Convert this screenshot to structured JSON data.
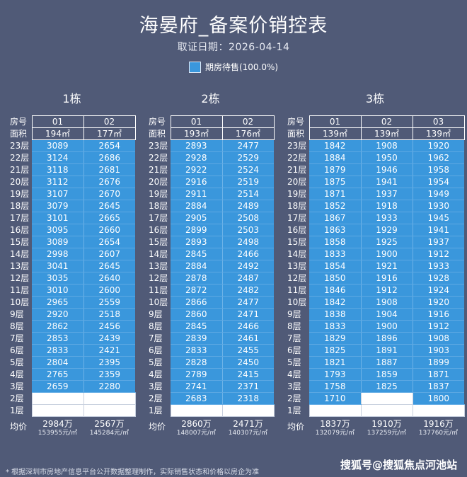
{
  "title": "海晏府_备案价销控表",
  "date_line": "取证日期：2026-04-14",
  "legend": {
    "label": "期房待售(100.0%)",
    "color": "#3a97dc"
  },
  "row_labels": {
    "room": "房号",
    "area": "面积",
    "avg": "均价"
  },
  "floor_labels": [
    "23层",
    "22层",
    "21层",
    "20层",
    "19层",
    "18层",
    "17层",
    "16层",
    "15层",
    "14层",
    "13层",
    "12层",
    "11层",
    "10层",
    "9层",
    "8层",
    "7层",
    "6层",
    "5层",
    "4层",
    "3层",
    "2层",
    "1层"
  ],
  "buildings": [
    {
      "name": "1栋",
      "units": [
        {
          "room": "01",
          "area": "194㎡",
          "prices": [
            "3089",
            "3124",
            "3118",
            "3112",
            "3107",
            "3079",
            "3101",
            "3095",
            "3089",
            "2998",
            "3041",
            "3035",
            "3010",
            "2965",
            "2920",
            "2862",
            "2853",
            "2833",
            "2804",
            "2765",
            "2659",
            "",
            ""
          ],
          "avg_total": "2984万",
          "avg_unit": "153955元/㎡"
        },
        {
          "room": "02",
          "area": "177㎡",
          "prices": [
            "2654",
            "2686",
            "2681",
            "2676",
            "2670",
            "2645",
            "2665",
            "2660",
            "2654",
            "2607",
            "2645",
            "2640",
            "2600",
            "2559",
            "2518",
            "2456",
            "2439",
            "2421",
            "2395",
            "2359",
            "2280",
            "",
            ""
          ],
          "avg_total": "2567万",
          "avg_unit": "145284元/㎡"
        }
      ]
    },
    {
      "name": "2栋",
      "units": [
        {
          "room": "01",
          "area": "193㎡",
          "prices": [
            "2893",
            "2928",
            "2922",
            "2916",
            "2911",
            "2884",
            "2905",
            "2899",
            "2893",
            "2845",
            "2884",
            "2878",
            "2872",
            "2866",
            "2860",
            "2845",
            "2839",
            "2833",
            "2828",
            "2789",
            "2741",
            "2683",
            ""
          ],
          "avg_total": "2860万",
          "avg_unit": "148007元/㎡"
        },
        {
          "room": "02",
          "area": "176㎡",
          "prices": [
            "2477",
            "2529",
            "2524",
            "2519",
            "2514",
            "2489",
            "2508",
            "2503",
            "2498",
            "2466",
            "2492",
            "2487",
            "2482",
            "2477",
            "2471",
            "2466",
            "2461",
            "2455",
            "2450",
            "2415",
            "2371",
            "2318",
            ""
          ],
          "avg_total": "2471万",
          "avg_unit": "140307元/㎡"
        }
      ]
    },
    {
      "name": "3栋",
      "units": [
        {
          "room": "01",
          "area": "139㎡",
          "prices": [
            "1842",
            "1884",
            "1879",
            "1875",
            "1871",
            "1852",
            "1867",
            "1863",
            "1858",
            "1833",
            "1854",
            "1850",
            "1846",
            "1842",
            "1838",
            "1833",
            "1829",
            "1825",
            "1821",
            "1793",
            "1758",
            "1710",
            ""
          ],
          "avg_total": "1837万",
          "avg_unit": "132079元/㎡"
        },
        {
          "room": "02",
          "area": "139㎡",
          "prices": [
            "1908",
            "1950",
            "1946",
            "1941",
            "1937",
            "1918",
            "1933",
            "1929",
            "1925",
            "1900",
            "1921",
            "1916",
            "1912",
            "1908",
            "1904",
            "1900",
            "1896",
            "1891",
            "1887",
            "1859",
            "1825",
            "",
            ""
          ],
          "avg_total": "1910万",
          "avg_unit": "137259元/㎡"
        },
        {
          "room": "03",
          "area": "139㎡",
          "prices": [
            "1920",
            "1962",
            "1958",
            "1954",
            "1949",
            "1930",
            "1945",
            "1941",
            "1937",
            "1912",
            "1933",
            "1928",
            "1924",
            "1920",
            "1916",
            "1912",
            "1908",
            "1903",
            "1899",
            "1871",
            "1837",
            "1800",
            ""
          ],
          "avg_total": "1916万",
          "avg_unit": "137760元/㎡"
        }
      ]
    }
  ],
  "footnote": "* 根据深圳市房地产信息平台公开数据整理制作，实际销售状态和价格以房企为准",
  "watermark": "搜狐号@搜狐焦点河池站"
}
